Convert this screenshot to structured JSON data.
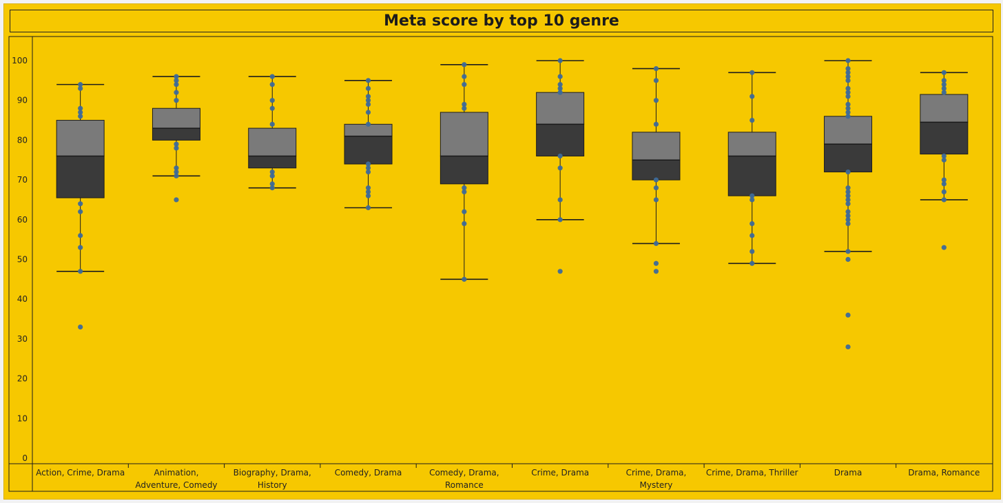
{
  "chart_data": {
    "type": "box",
    "title": "Meta score by top 10 genre",
    "xlabel": "",
    "ylabel": "",
    "ylim": [
      0,
      105
    ],
    "yticks": [
      0,
      10,
      20,
      30,
      40,
      50,
      60,
      70,
      80,
      90,
      100
    ],
    "colors": {
      "background": "#f6c800",
      "upper_box": "#7a7a7a",
      "lower_box": "#3a3a3a",
      "points": "#3d6a9a",
      "lines": "#1c1c1c"
    },
    "categories": [
      {
        "label": [
          "Action, Crime, Drama"
        ],
        "whisker_low": 47,
        "q1": 65.5,
        "median": 76,
        "q3": 85,
        "whisker_high": 94,
        "points": [
          94,
          93,
          88,
          87,
          86,
          64,
          62,
          56,
          53,
          47,
          33
        ]
      },
      {
        "label": [
          "Animation,",
          "Adventure, Comedy"
        ],
        "whisker_low": 71,
        "q1": 80,
        "median": 83,
        "q3": 88,
        "whisker_high": 96,
        "points": [
          96,
          95,
          94,
          92,
          90,
          79,
          78,
          73,
          72,
          71,
          65
        ]
      },
      {
        "label": [
          "Biography, Drama,",
          "History"
        ],
        "whisker_low": 68,
        "q1": 73,
        "median": 76,
        "q3": 83,
        "whisker_high": 96,
        "points": [
          96,
          94,
          90,
          88,
          84,
          72,
          71,
          69,
          68
        ]
      },
      {
        "label": [
          "Comedy, Drama"
        ],
        "whisker_low": 63,
        "q1": 74,
        "median": 81,
        "q3": 84,
        "whisker_high": 95,
        "points": [
          95,
          93,
          91,
          90,
          89,
          87,
          84,
          74,
          73,
          72,
          68,
          67,
          66,
          63
        ]
      },
      {
        "label": [
          "Comedy, Drama,",
          "Romance"
        ],
        "whisker_low": 45,
        "q1": 69,
        "median": 76,
        "q3": 87,
        "whisker_high": 99,
        "points": [
          99,
          96,
          94,
          89,
          88,
          68,
          67,
          62,
          59,
          45
        ]
      },
      {
        "label": [
          "Crime, Drama"
        ],
        "whisker_low": 60,
        "q1": 76,
        "median": 84,
        "q3": 92,
        "whisker_high": 100,
        "points": [
          100,
          96,
          94,
          93,
          92,
          76,
          73,
          65,
          60,
          47
        ]
      },
      {
        "label": [
          "Crime, Drama,",
          "Mystery"
        ],
        "whisker_low": 54,
        "q1": 70,
        "median": 75,
        "q3": 82,
        "whisker_high": 98,
        "points": [
          98,
          95,
          90,
          84,
          70,
          68,
          65,
          54,
          49,
          47
        ]
      },
      {
        "label": [
          "Crime, Drama, Thriller"
        ],
        "whisker_low": 49,
        "q1": 66,
        "median": 76,
        "q3": 82,
        "whisker_high": 97,
        "points": [
          97,
          91,
          85,
          66,
          65,
          59,
          56,
          52,
          49
        ]
      },
      {
        "label": [
          "Drama"
        ],
        "whisker_low": 52,
        "q1": 72,
        "median": 79,
        "q3": 86,
        "whisker_high": 100,
        "points": [
          100,
          98,
          97,
          96,
          95,
          93,
          92,
          91,
          89,
          88,
          87,
          86,
          72,
          68,
          67,
          66,
          65,
          64,
          62,
          61,
          60,
          59,
          52,
          50,
          36,
          28
        ]
      },
      {
        "label": [
          "Drama, Romance"
        ],
        "whisker_low": 65,
        "q1": 76.5,
        "median": 84.5,
        "q3": 91.5,
        "whisker_high": 97,
        "points": [
          97,
          95,
          94,
          93,
          92,
          76,
          75,
          70,
          69,
          67,
          65,
          53
        ]
      }
    ]
  }
}
